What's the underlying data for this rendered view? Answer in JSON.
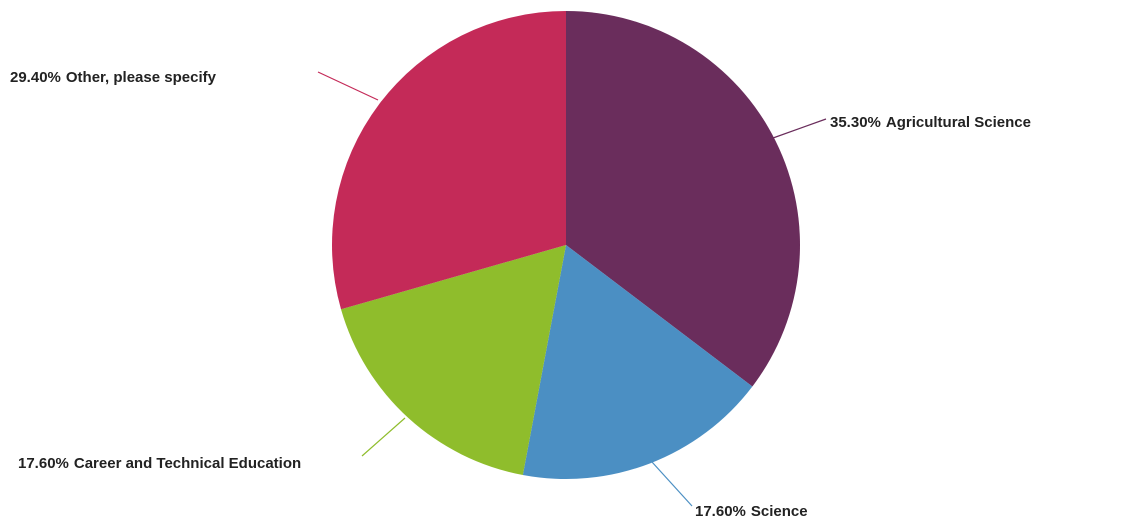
{
  "chart_data": {
    "type": "pie",
    "categories": [
      "Agricultural Science",
      "Science",
      "Career and Technical Education",
      "Other, please specify"
    ],
    "values": [
      35.3,
      17.6,
      17.6,
      29.4
    ],
    "value_labels": [
      "35.30%",
      "17.60%",
      "17.60%",
      "29.40%"
    ],
    "colors": [
      "#6a2d5c",
      "#4b8fc3",
      "#8fbd2c",
      "#c42a58"
    ]
  }
}
